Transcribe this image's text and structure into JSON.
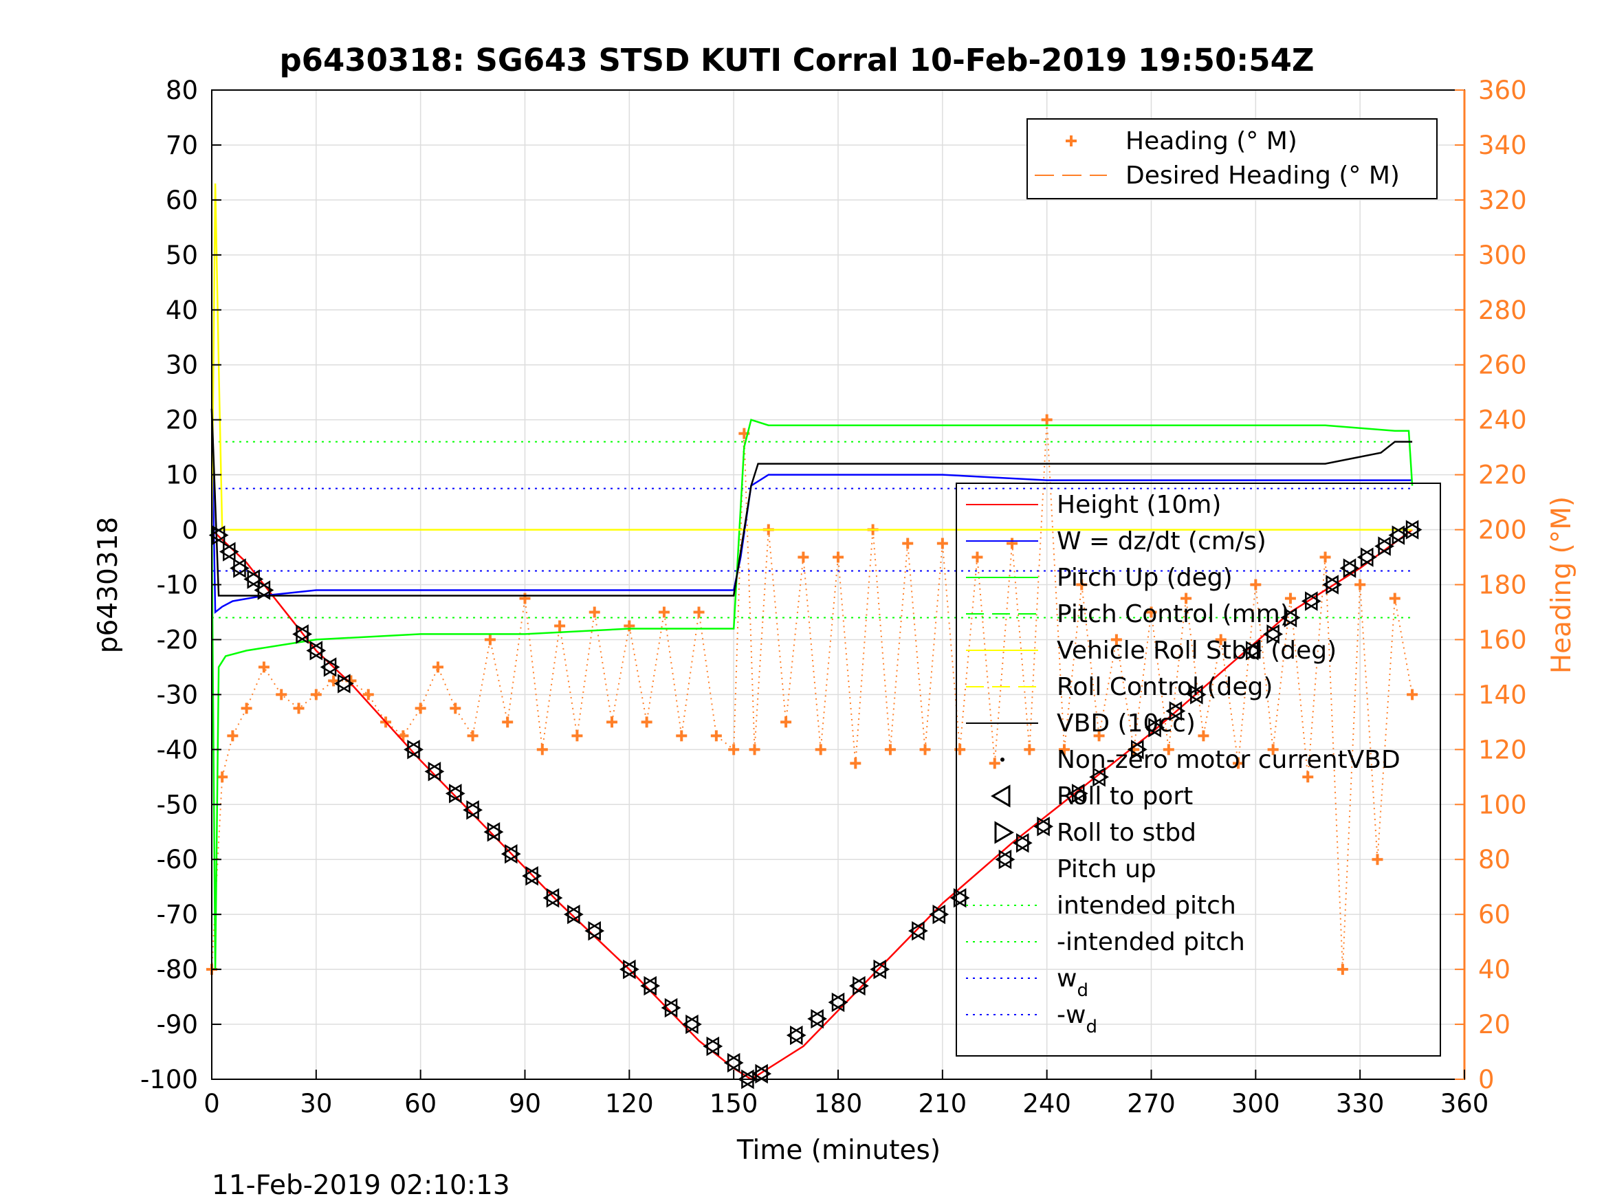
{
  "chart_data": {
    "type": "line",
    "title": "p6430318: SG643 STSD KUTI Corral 10-Feb-2019 19:50:54Z",
    "xlabel": "Time (minutes)",
    "ylabel_left": "p6430318",
    "ylabel_right": "Heading (°M)",
    "timestamp": "11-Feb-2019 02:10:13",
    "xlim": [
      0,
      360
    ],
    "ylim_left": [
      -100,
      80
    ],
    "ylim_right": [
      0,
      360
    ],
    "x_ticks": [
      "0",
      "30",
      "60",
      "90",
      "120",
      "150",
      "180",
      "210",
      "240",
      "270",
      "300",
      "330",
      "360"
    ],
    "y_ticks_left": [
      "80",
      "70",
      "60",
      "50",
      "40",
      "30",
      "20",
      "10",
      "0",
      "-10",
      "-20",
      "-30",
      "-40",
      "-50",
      "-60",
      "-70",
      "-80",
      "-90",
      "-100"
    ],
    "y_ticks_right": [
      "360",
      "340",
      "320",
      "300",
      "280",
      "260",
      "240",
      "220",
      "200",
      "180",
      "160",
      "140",
      "120",
      "100",
      "80",
      "60",
      "40",
      "20",
      "0"
    ],
    "grid": true,
    "legend_top": [
      {
        "label": "Heading (° M)",
        "marker": "plus",
        "color": "#ff7f27"
      },
      {
        "label": "Desired Heading (° M)",
        "line": "dashed",
        "color": "#ff7f27"
      }
    ],
    "legend_main": [
      {
        "label": "Height (10m)",
        "line": "solid",
        "color": "#ff0000"
      },
      {
        "label": "W = dz/dt (cm/s)",
        "line": "solid",
        "color": "#0000ff"
      },
      {
        "label": "Pitch Up (deg)",
        "line": "solid",
        "color": "#00ff00"
      },
      {
        "label": "Pitch Control (mm)",
        "line": "dashed",
        "color": "#00ff00"
      },
      {
        "label": "Vehicle Roll Stbd (deg)",
        "line": "solid",
        "color": "#ffff00"
      },
      {
        "label": "Roll Control (deg)",
        "line": "dashed",
        "color": "#ffff00"
      },
      {
        "label": "VBD (10cc)",
        "line": "solid",
        "color": "#000000"
      },
      {
        "label": "Non-zero motor currentVBD",
        "marker": "dot",
        "color": "#000000"
      },
      {
        "label": "Roll to port",
        "marker": "triangle-left",
        "color": "#000000"
      },
      {
        "label": "Roll to stbd",
        "marker": "triangle-right",
        "color": "#000000"
      },
      {
        "label": "Pitch up",
        "marker": "triangle-up",
        "color": "#000000"
      },
      {
        "label": "intended pitch",
        "line": "dotted",
        "color": "#00ff00"
      },
      {
        "label": "-intended pitch",
        "line": "dotted",
        "color": "#00ff00"
      },
      {
        "label": "w",
        "sub": "d",
        "line": "dotted",
        "color": "#0000ff"
      },
      {
        "label": "-w",
        "sub": "d",
        "line": "dotted",
        "color": "#0000ff"
      }
    ],
    "series": [
      {
        "name": "Height (10m)",
        "axis": "left",
        "color": "#ff0000",
        "x": [
          0,
          10,
          20,
          30,
          40,
          60,
          80,
          100,
          120,
          140,
          150,
          155,
          170,
          190,
          210,
          230,
          250,
          270,
          290,
          310,
          330,
          345
        ],
        "y": [
          0,
          -6,
          -14,
          -22,
          -28,
          -42,
          -55,
          -68,
          -80,
          -93,
          -98,
          -100,
          -94,
          -81,
          -68,
          -57,
          -47,
          -37,
          -26,
          -15,
          -7,
          0
        ]
      },
      {
        "name": "W = dz/dt (cm/s)",
        "axis": "left",
        "color": "#0000ff",
        "x": [
          0,
          1,
          3,
          6,
          15,
          30,
          60,
          90,
          120,
          150,
          152,
          155,
          160,
          180,
          210,
          240,
          270,
          300,
          330,
          345
        ],
        "y": [
          22,
          -15,
          -14,
          -13,
          -12,
          -11,
          -11,
          -11,
          -11,
          -11,
          -5,
          8,
          10,
          10,
          10,
          9,
          9,
          9,
          9,
          9
        ]
      },
      {
        "name": "Pitch Up (deg)",
        "axis": "left",
        "color": "#00ff00",
        "x": [
          0,
          1,
          2,
          4,
          10,
          20,
          30,
          60,
          90,
          120,
          150,
          153,
          155,
          160,
          200,
          240,
          280,
          320,
          340,
          344,
          345
        ],
        "y": [
          0,
          -80,
          -25,
          -23,
          -22,
          -21,
          -20,
          -19,
          -19,
          -18,
          -18,
          15,
          20,
          19,
          19,
          19,
          19,
          19,
          18,
          18,
          8
        ]
      },
      {
        "name": "Vehicle Roll Stbd (deg)",
        "axis": "left",
        "color": "#ffff00",
        "x": [
          0,
          1,
          2,
          3,
          5,
          10,
          30,
          60,
          90,
          120,
          150,
          160,
          200,
          240,
          280,
          310,
          330,
          345
        ],
        "y": [
          0,
          63,
          30,
          0,
          0,
          0,
          0,
          0,
          0,
          0,
          0,
          0,
          0,
          0,
          0,
          0,
          0,
          0
        ]
      },
      {
        "name": "VBD (10cc)",
        "axis": "left",
        "color": "#000000",
        "x": [
          0,
          2,
          3,
          150,
          155,
          157,
          200,
          240,
          280,
          320,
          328,
          336,
          340,
          345
        ],
        "y": [
          22,
          -12,
          -12,
          -12,
          8,
          12,
          12,
          12,
          12,
          12,
          13,
          14,
          16,
          16
        ]
      },
      {
        "name": "Heading (° M)",
        "axis": "right",
        "color": "#ff7f27",
        "x": [
          0,
          3,
          6,
          10,
          15,
          20,
          25,
          30,
          35,
          40,
          45,
          50,
          55,
          60,
          65,
          70,
          75,
          80,
          85,
          90,
          95,
          100,
          105,
          110,
          115,
          120,
          125,
          130,
          135,
          140,
          145,
          150,
          153,
          156,
          160,
          165,
          170,
          175,
          180,
          185,
          190,
          195,
          200,
          205,
          210,
          215,
          220,
          225,
          230,
          235,
          240,
          245,
          250,
          255,
          260,
          265,
          270,
          275,
          280,
          285,
          290,
          295,
          300,
          305,
          310,
          315,
          320,
          325,
          330,
          335,
          340,
          345
        ],
        "y": [
          40,
          110,
          125,
          135,
          150,
          140,
          135,
          140,
          145,
          145,
          140,
          130,
          125,
          135,
          150,
          135,
          125,
          160,
          130,
          175,
          120,
          165,
          125,
          170,
          130,
          165,
          130,
          170,
          125,
          170,
          125,
          120,
          235,
          120,
          200,
          130,
          190,
          120,
          190,
          115,
          200,
          120,
          195,
          120,
          195,
          120,
          190,
          115,
          195,
          120,
          240,
          120,
          180,
          125,
          160,
          120,
          170,
          120,
          175,
          125,
          160,
          115,
          180,
          120,
          175,
          110,
          190,
          40,
          180,
          80,
          175,
          140
        ]
      }
    ],
    "markers": [
      {
        "x": 2,
        "y": -1
      },
      {
        "x": 5,
        "y": -4
      },
      {
        "x": 8,
        "y": -7
      },
      {
        "x": 12,
        "y": -9
      },
      {
        "x": 15,
        "y": -11
      },
      {
        "x": 26,
        "y": -19
      },
      {
        "x": 30,
        "y": -22
      },
      {
        "x": 34,
        "y": -25
      },
      {
        "x": 38,
        "y": -28
      },
      {
        "x": 58,
        "y": -40
      },
      {
        "x": 64,
        "y": -44
      },
      {
        "x": 70,
        "y": -48
      },
      {
        "x": 75,
        "y": -51
      },
      {
        "x": 81,
        "y": -55
      },
      {
        "x": 86,
        "y": -59
      },
      {
        "x": 92,
        "y": -63
      },
      {
        "x": 98,
        "y": -67
      },
      {
        "x": 104,
        "y": -70
      },
      {
        "x": 110,
        "y": -73
      },
      {
        "x": 120,
        "y": -80
      },
      {
        "x": 126,
        "y": -83
      },
      {
        "x": 132,
        "y": -87
      },
      {
        "x": 138,
        "y": -90
      },
      {
        "x": 144,
        "y": -94
      },
      {
        "x": 150,
        "y": -97
      },
      {
        "x": 154,
        "y": -100
      },
      {
        "x": 158,
        "y": -99
      },
      {
        "x": 168,
        "y": -92
      },
      {
        "x": 174,
        "y": -89
      },
      {
        "x": 180,
        "y": -86
      },
      {
        "x": 186,
        "y": -83
      },
      {
        "x": 192,
        "y": -80
      },
      {
        "x": 203,
        "y": -73
      },
      {
        "x": 209,
        "y": -70
      },
      {
        "x": 215,
        "y": -67
      },
      {
        "x": 228,
        "y": -60
      },
      {
        "x": 233,
        "y": -57
      },
      {
        "x": 239,
        "y": -54
      },
      {
        "x": 249,
        "y": -48
      },
      {
        "x": 255,
        "y": -45
      },
      {
        "x": 266,
        "y": -40
      },
      {
        "x": 271,
        "y": -36
      },
      {
        "x": 277,
        "y": -33
      },
      {
        "x": 283,
        "y": -30
      },
      {
        "x": 299,
        "y": -22
      },
      {
        "x": 305,
        "y": -19
      },
      {
        "x": 310,
        "y": -16
      },
      {
        "x": 316,
        "y": -13
      },
      {
        "x": 322,
        "y": -10
      },
      {
        "x": 327,
        "y": -7
      },
      {
        "x": 332,
        "y": -5
      },
      {
        "x": 337,
        "y": -3
      },
      {
        "x": 341,
        "y": -1
      },
      {
        "x": 345,
        "y": 0
      }
    ]
  }
}
